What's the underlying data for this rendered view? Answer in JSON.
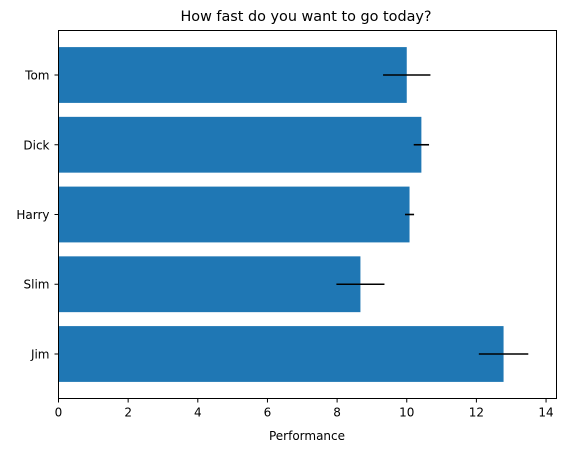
{
  "chart_data": {
    "type": "bar",
    "orientation": "horizontal",
    "title": "How fast do you want to go today?",
    "xlabel": "Performance",
    "ylabel": "",
    "xlim": [
      0,
      14.3
    ],
    "xticks": [
      0,
      2,
      4,
      6,
      8,
      10,
      12,
      14
    ],
    "grid": false,
    "bar_color": "#1f77b4",
    "errorbar_color": "#000000",
    "categories": [
      "Tom",
      "Dick",
      "Harry",
      "Slim",
      "Jim"
    ],
    "values": [
      10.0,
      10.42,
      10.08,
      8.67,
      12.78
    ],
    "errors": [
      0.68,
      0.22,
      0.13,
      0.69,
      0.71
    ]
  }
}
